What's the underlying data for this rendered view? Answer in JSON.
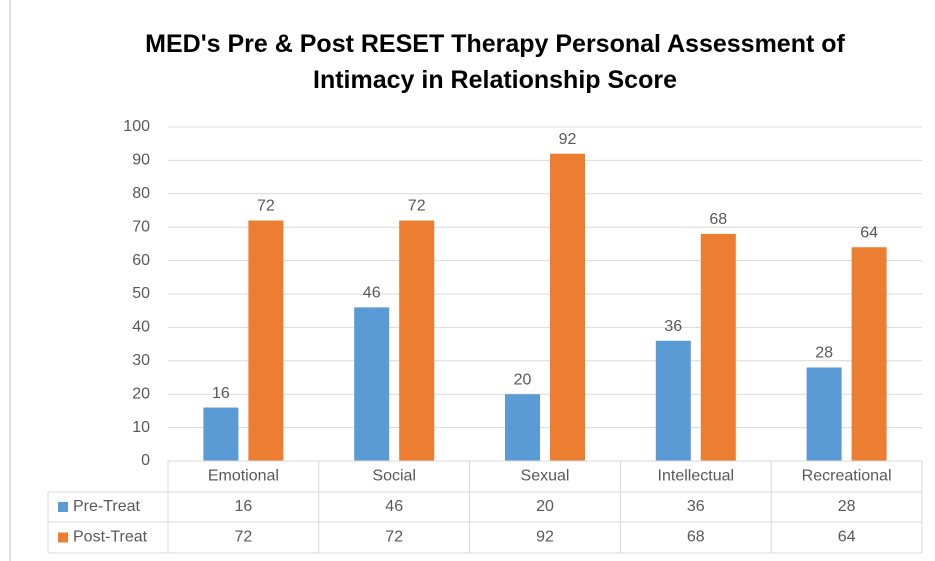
{
  "chart_data": {
    "type": "bar",
    "title": "MED's Pre & Post RESET Therapy Personal Assessment of Intimacy in Relationship Score",
    "categories": [
      "Emotional",
      "Social",
      "Sexual",
      "Intellectual",
      "Recreational"
    ],
    "series": [
      {
        "name": "Pre-Treat",
        "color": "#5b9bd5",
        "values": [
          16,
          46,
          20,
          36,
          28
        ]
      },
      {
        "name": "Post-Treat",
        "color": "#ed7d31",
        "values": [
          72,
          72,
          92,
          68,
          64
        ]
      }
    ],
    "ylim": [
      0,
      100
    ],
    "yticks": [
      0,
      10,
      20,
      30,
      40,
      50,
      60,
      70,
      80,
      90,
      100
    ],
    "grid": true,
    "data_table": true
  }
}
